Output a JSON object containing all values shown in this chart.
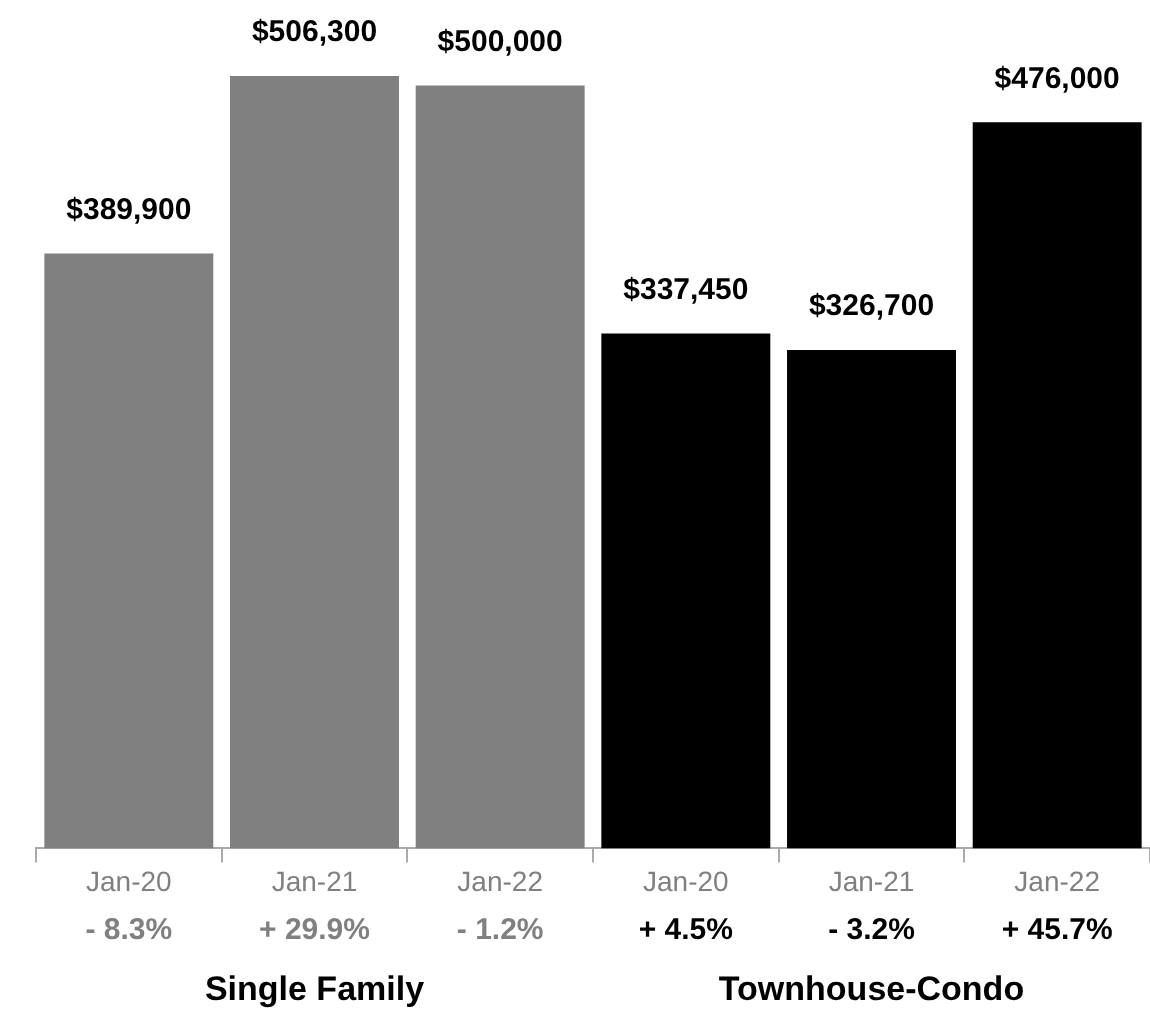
{
  "chart_data": {
    "type": "bar",
    "categories": [
      "Jan-20",
      "Jan-21",
      "Jan-22",
      "Jan-20",
      "Jan-21",
      "Jan-22"
    ],
    "series": [
      {
        "color": "#808080",
        "values": [
          389900,
          506300,
          500000,
          null,
          null,
          null
        ],
        "value_labels": [
          "$389,900",
          "$506,300",
          "$500,000",
          null,
          null,
          null
        ]
      },
      {
        "color": "#000000",
        "values": [
          null,
          null,
          null,
          337450,
          326700,
          476000
        ],
        "value_labels": [
          null,
          null,
          null,
          "$337,450",
          "$326,700",
          "$476,000"
        ]
      }
    ],
    "annotations": [
      "- 8.3%",
      "+ 29.9%",
      "- 1.2%",
      "+ 4.5%",
      "- 3.2%",
      "+ 45.7%",
      "Single Family",
      "Townhouse-Condo"
    ],
    "grid": false,
    "legend": false
  }
}
